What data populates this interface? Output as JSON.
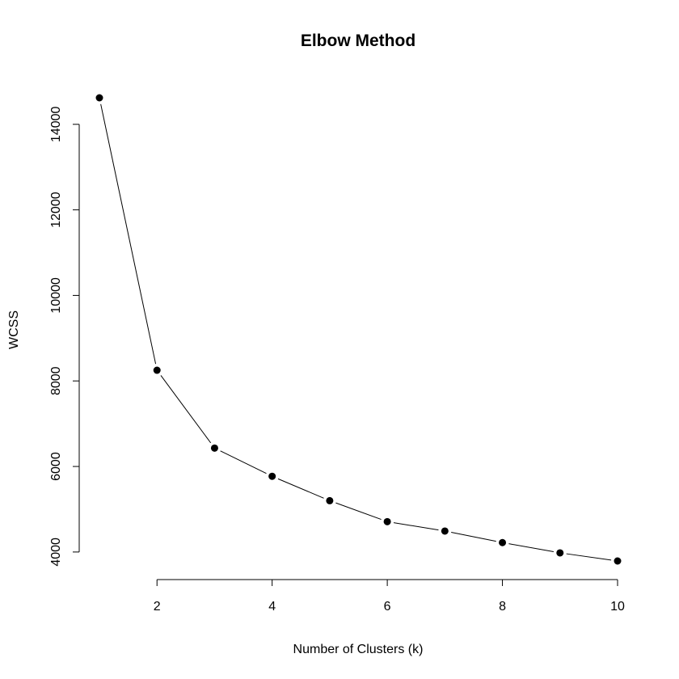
{
  "chart_data": {
    "type": "line",
    "title": "Elbow Method",
    "xlabel": "Number of Clusters (k)",
    "ylabel": "WCSS",
    "x": [
      1,
      2,
      3,
      4,
      5,
      6,
      7,
      8,
      9,
      10
    ],
    "y": [
      14620,
      8250,
      6430,
      5770,
      5200,
      4710,
      4490,
      4220,
      3980,
      3790
    ],
    "xlim": [
      1,
      10
    ],
    "ylim": [
      3790,
      14620
    ],
    "xticks": [
      2,
      4,
      6,
      8,
      10
    ],
    "yticks": [
      4000,
      6000,
      8000,
      10000,
      12000,
      14000
    ],
    "grid": false,
    "marker": "filled-circle",
    "color": "#000000"
  }
}
